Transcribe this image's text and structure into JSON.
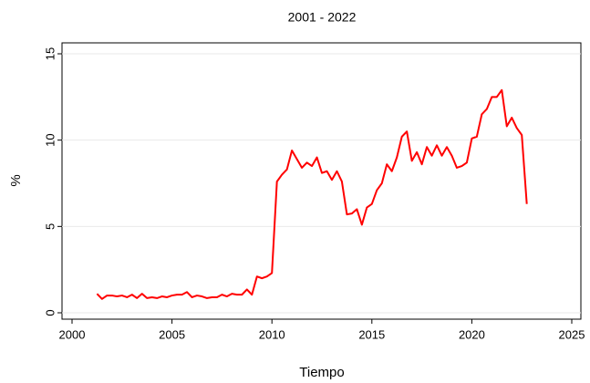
{
  "chart_data": {
    "type": "line",
    "title": "2001 - 2022",
    "x_label": "Tiempo",
    "y_label": "%",
    "x": [
      2001.25,
      2001.5,
      2001.75,
      2002,
      2002.25,
      2002.5,
      2002.75,
      2003,
      2003.25,
      2003.5,
      2003.75,
      2004,
      2004.25,
      2004.5,
      2004.75,
      2005,
      2005.25,
      2005.5,
      2005.75,
      2006,
      2006.25,
      2006.5,
      2006.75,
      2007,
      2007.25,
      2007.5,
      2007.75,
      2008,
      2008.25,
      2008.5,
      2008.75,
      2009,
      2009.25,
      2009.5,
      2009.75,
      2010,
      2010.25,
      2010.5,
      2010.75,
      2011,
      2011.25,
      2011.5,
      2011.75,
      2012,
      2012.25,
      2012.5,
      2012.75,
      2013,
      2013.25,
      2013.5,
      2013.75,
      2014,
      2014.25,
      2014.5,
      2014.75,
      2015,
      2015.25,
      2015.5,
      2015.75,
      2016,
      2016.25,
      2016.5,
      2016.75,
      2017,
      2017.25,
      2017.5,
      2017.75,
      2018,
      2018.25,
      2018.5,
      2018.75,
      2019,
      2019.25,
      2019.5,
      2019.75,
      2020,
      2020.25,
      2020.5,
      2020.75,
      2021,
      2021.25,
      2021.5,
      2021.75,
      2022,
      2022.25,
      2022.5,
      2022.75
    ],
    "values": [
      1.1,
      0.8,
      1.0,
      1.0,
      0.95,
      1.0,
      0.9,
      1.05,
      0.85,
      1.1,
      0.85,
      0.9,
      0.85,
      0.95,
      0.9,
      1.0,
      1.05,
      1.05,
      1.2,
      0.9,
      1.0,
      0.95,
      0.85,
      0.9,
      0.9,
      1.05,
      0.95,
      1.1,
      1.05,
      1.05,
      1.35,
      1.05,
      2.1,
      2.0,
      2.1,
      2.3,
      7.6,
      8.0,
      8.3,
      9.4,
      8.9,
      8.4,
      8.7,
      8.5,
      9.0,
      8.1,
      8.2,
      7.7,
      8.2,
      7.6,
      5.7,
      5.75,
      6.0,
      5.1,
      6.1,
      6.3,
      7.1,
      7.5,
      8.6,
      8.2,
      9.0,
      10.2,
      10.5,
      8.8,
      9.3,
      8.6,
      9.6,
      9.1,
      9.7,
      9.1,
      9.6,
      9.1,
      8.4,
      8.5,
      8.7,
      10.1,
      10.2,
      11.5,
      11.8,
      12.5,
      12.5,
      12.9,
      10.8,
      11.3,
      10.7,
      10.3,
      6.3
    ],
    "color": "#ff0000",
    "xlim": [
      2000,
      2025
    ],
    "xticks": [
      2000,
      2005,
      2010,
      2015,
      2020,
      2025
    ],
    "ylim": [
      0,
      15
    ],
    "yticks": [
      0,
      5,
      10,
      15
    ],
    "grid": true
  }
}
